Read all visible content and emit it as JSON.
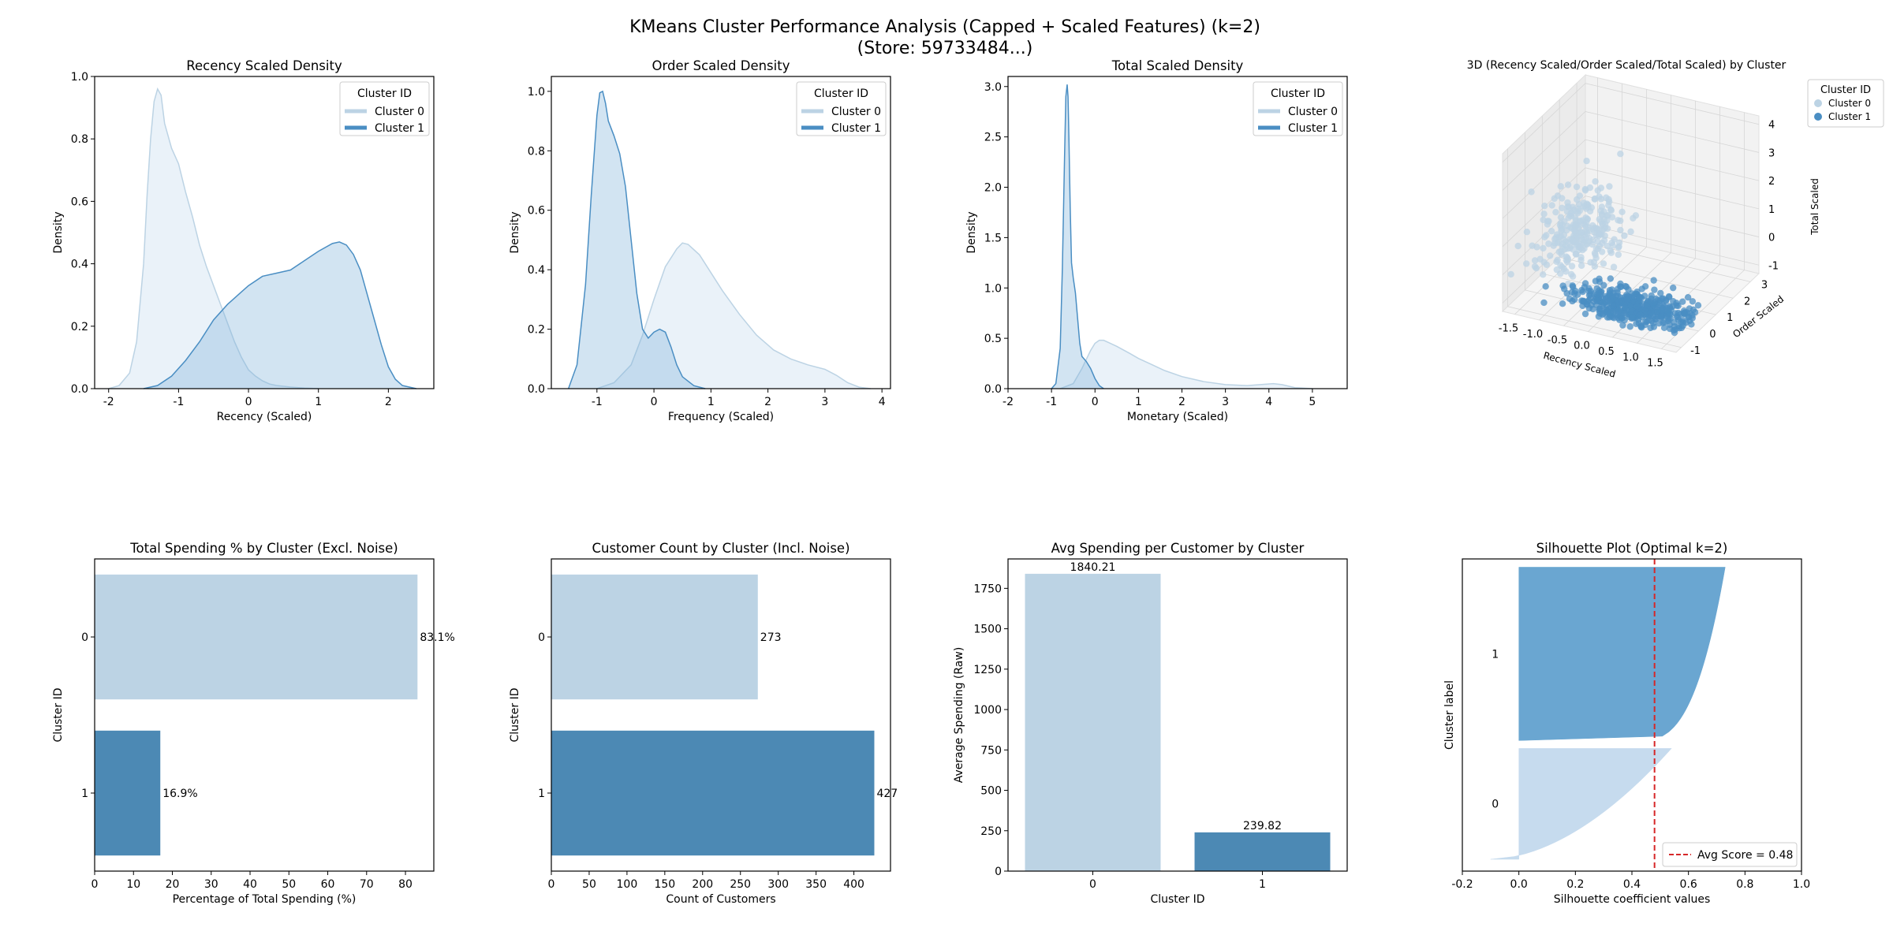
{
  "suptitle": [
    "KMeans Cluster Performance Analysis (Capped + Scaled Features) (k=2)",
    "(Store: 59733484...)"
  ],
  "colors": {
    "cluster0": "#bcd3e4",
    "cluster1": "#4c89b4",
    "kde0_line": "#bcd3e4",
    "kde1_line": "#4a8ec3",
    "sil0": "#c6dbee",
    "sil1": "#6aa6d1",
    "avg_line": "#d62728"
  },
  "chart_data": [
    {
      "type": "area",
      "id": "recency",
      "title": "Recency Scaled Density",
      "xlabel": "Recency (Scaled)",
      "ylabel": "Density",
      "xlim": [
        -2.2,
        2.65
      ],
      "ylim": [
        0,
        1.0
      ],
      "xticks": [
        -2,
        -1,
        0,
        1,
        2
      ],
      "yticks": [
        0.0,
        0.2,
        0.4,
        0.6,
        0.8,
        1.0
      ],
      "legend": {
        "title": "Cluster ID",
        "entries": [
          "Cluster 0",
          "Cluster 1"
        ],
        "position": "top-right"
      },
      "series": [
        {
          "name": "Cluster 0",
          "x": [
            -2.0,
            -1.85,
            -1.7,
            -1.6,
            -1.5,
            -1.45,
            -1.4,
            -1.35,
            -1.3,
            -1.25,
            -1.2,
            -1.1,
            -1.0,
            -0.9,
            -0.8,
            -0.7,
            -0.6,
            -0.5,
            -0.4,
            -0.3,
            -0.2,
            -0.1,
            0.0,
            0.1,
            0.2,
            0.3,
            0.4,
            0.6,
            0.8,
            1.0
          ],
          "y": [
            0.0,
            0.01,
            0.05,
            0.15,
            0.4,
            0.62,
            0.8,
            0.92,
            0.96,
            0.94,
            0.85,
            0.77,
            0.72,
            0.63,
            0.55,
            0.46,
            0.39,
            0.33,
            0.27,
            0.21,
            0.15,
            0.1,
            0.06,
            0.04,
            0.025,
            0.015,
            0.01,
            0.005,
            0.002,
            0.0
          ]
        },
        {
          "name": "Cluster 1",
          "x": [
            -1.5,
            -1.3,
            -1.1,
            -0.9,
            -0.7,
            -0.5,
            -0.3,
            -0.1,
            0.0,
            0.2,
            0.4,
            0.6,
            0.8,
            1.0,
            1.2,
            1.3,
            1.4,
            1.5,
            1.6,
            1.7,
            1.8,
            1.9,
            2.0,
            2.1,
            2.2,
            2.4
          ],
          "y": [
            0.0,
            0.01,
            0.04,
            0.09,
            0.15,
            0.22,
            0.27,
            0.31,
            0.33,
            0.36,
            0.37,
            0.38,
            0.41,
            0.44,
            0.465,
            0.47,
            0.46,
            0.43,
            0.38,
            0.3,
            0.22,
            0.14,
            0.07,
            0.03,
            0.01,
            0.0
          ]
        }
      ]
    },
    {
      "type": "area",
      "id": "order",
      "title": "Order Scaled Density",
      "xlabel": "Frequency (Scaled)",
      "ylabel": "Density",
      "xlim": [
        -1.8,
        4.15
      ],
      "ylim": [
        0,
        1.05
      ],
      "xticks": [
        -1,
        0,
        1,
        2,
        3,
        4
      ],
      "yticks": [
        0.0,
        0.2,
        0.4,
        0.6,
        0.8,
        1.0
      ],
      "legend": {
        "title": "Cluster ID",
        "entries": [
          "Cluster 0",
          "Cluster 1"
        ],
        "position": "top-right"
      },
      "series": [
        {
          "name": "Cluster 0",
          "x": [
            -1.0,
            -0.7,
            -0.4,
            -0.2,
            0.0,
            0.2,
            0.4,
            0.5,
            0.6,
            0.8,
            1.0,
            1.2,
            1.5,
            1.8,
            2.1,
            2.4,
            2.7,
            3.0,
            3.2,
            3.4,
            3.6,
            3.8
          ],
          "y": [
            0.0,
            0.02,
            0.08,
            0.18,
            0.3,
            0.41,
            0.47,
            0.49,
            0.485,
            0.45,
            0.39,
            0.33,
            0.25,
            0.18,
            0.13,
            0.1,
            0.08,
            0.065,
            0.045,
            0.02,
            0.005,
            0.0
          ]
        },
        {
          "name": "Cluster 1",
          "x": [
            -1.5,
            -1.35,
            -1.2,
            -1.1,
            -1.0,
            -0.95,
            -0.9,
            -0.85,
            -0.8,
            -0.7,
            -0.6,
            -0.5,
            -0.4,
            -0.3,
            -0.2,
            -0.1,
            0.0,
            0.1,
            0.2,
            0.3,
            0.4,
            0.5,
            0.7,
            0.9
          ],
          "y": [
            0.0,
            0.08,
            0.35,
            0.65,
            0.92,
            0.995,
            1.0,
            0.96,
            0.9,
            0.85,
            0.79,
            0.68,
            0.5,
            0.32,
            0.2,
            0.17,
            0.19,
            0.2,
            0.19,
            0.14,
            0.08,
            0.04,
            0.01,
            0.0
          ]
        }
      ]
    },
    {
      "type": "area",
      "id": "total",
      "title": "Total Scaled Density",
      "xlabel": "Monetary (Scaled)",
      "ylabel": "Density",
      "xlim": [
        -2.0,
        5.8
      ],
      "ylim": [
        0,
        3.1
      ],
      "xticks": [
        -2,
        -1,
        0,
        1,
        2,
        3,
        4,
        5
      ],
      "yticks": [
        0.0,
        0.5,
        1.0,
        1.5,
        2.0,
        2.5,
        3.0
      ],
      "legend": {
        "title": "Cluster ID",
        "entries": [
          "Cluster 0",
          "Cluster 1"
        ],
        "position": "top-right"
      },
      "series": [
        {
          "name": "Cluster 0",
          "x": [
            -0.8,
            -0.5,
            -0.3,
            -0.1,
            0.0,
            0.1,
            0.2,
            0.3,
            0.5,
            0.8,
            1.0,
            1.3,
            1.6,
            2.0,
            2.5,
            3.0,
            3.5,
            3.8,
            4.1,
            4.3,
            4.6,
            5.0
          ],
          "y": [
            0.0,
            0.05,
            0.2,
            0.38,
            0.45,
            0.48,
            0.48,
            0.46,
            0.42,
            0.35,
            0.3,
            0.24,
            0.18,
            0.12,
            0.07,
            0.04,
            0.03,
            0.04,
            0.05,
            0.04,
            0.01,
            0.0
          ]
        },
        {
          "name": "Cluster 1",
          "x": [
            -1.0,
            -0.9,
            -0.8,
            -0.75,
            -0.7,
            -0.67,
            -0.64,
            -0.62,
            -0.6,
            -0.57,
            -0.54,
            -0.5,
            -0.45,
            -0.4,
            -0.35,
            -0.3,
            -0.2,
            -0.1,
            0.0,
            0.1,
            0.2
          ],
          "y": [
            0.0,
            0.05,
            0.4,
            1.2,
            2.3,
            2.9,
            3.02,
            2.9,
            2.5,
            1.8,
            1.25,
            1.1,
            0.95,
            0.7,
            0.45,
            0.32,
            0.27,
            0.2,
            0.1,
            0.03,
            0.0
          ]
        }
      ]
    },
    {
      "type": "scatter",
      "id": "scatter3d",
      "title": "3D (Recency Scaled/Order Scaled/Total Scaled) by Cluster",
      "xlabel": "Recency Scaled",
      "ylabel": "Order Scaled",
      "zlabel": "Total Scaled",
      "xticks": [
        -1.5,
        -1.0,
        -0.5,
        0.0,
        0.5,
        1.0,
        1.5
      ],
      "yticks": [
        -1,
        0,
        1,
        2,
        3
      ],
      "zticks": [
        -1,
        0,
        1,
        2,
        3,
        4
      ],
      "legend": {
        "title": "Cluster ID",
        "entries": [
          "Cluster 0",
          "Cluster 1"
        ],
        "position": "right"
      },
      "clusters": [
        {
          "name": "Cluster 0",
          "recency_mean": -1.0,
          "recency_sd": 0.35,
          "order_mean": 1.0,
          "order_sd": 0.8,
          "total_mean": 0.6,
          "total_sd": 0.9,
          "count": 273
        },
        {
          "name": "Cluster 1",
          "recency_mean": 0.7,
          "recency_sd": 0.55,
          "order_mean": -0.6,
          "order_sd": 0.35,
          "total_mean": -0.55,
          "total_sd": 0.2,
          "count": 427
        }
      ]
    },
    {
      "type": "bar",
      "id": "spending_pct",
      "orientation": "horizontal",
      "title": "Total Spending % by Cluster (Excl. Noise)",
      "xlabel": "Percentage of Total Spending (%)",
      "ylabel": "Cluster ID",
      "categories": [
        "0",
        "1"
      ],
      "values": [
        83.1,
        16.9
      ],
      "labels": [
        "83.1%",
        "16.9%"
      ],
      "xlim": [
        0,
        87.3
      ],
      "xticks": [
        0,
        10,
        20,
        30,
        40,
        50,
        60,
        70,
        80
      ]
    },
    {
      "type": "bar",
      "id": "customer_count",
      "orientation": "horizontal",
      "title": "Customer Count by Cluster (Incl. Noise)",
      "xlabel": "Count of Customers",
      "ylabel": "Cluster ID",
      "categories": [
        "0",
        "1"
      ],
      "values": [
        273,
        427
      ],
      "labels": [
        "273",
        "427"
      ],
      "xlim": [
        0,
        448.4
      ],
      "xticks": [
        0,
        50,
        100,
        150,
        200,
        250,
        300,
        350,
        400
      ]
    },
    {
      "type": "bar",
      "id": "avg_spending",
      "orientation": "vertical",
      "title": "Avg Spending per Customer by Cluster",
      "xlabel": "Cluster ID",
      "ylabel": "Average Spending (Raw)",
      "categories": [
        "0",
        "1"
      ],
      "values": [
        1840.21,
        239.82
      ],
      "labels": [
        "1840.21",
        "239.82"
      ],
      "ylim": [
        0,
        1932.2
      ],
      "yticks": [
        0,
        250,
        500,
        750,
        1000,
        1250,
        1500,
        1750
      ]
    },
    {
      "type": "area",
      "id": "silhouette",
      "title": "Silhouette Plot (Optimal k=2)",
      "xlabel": "Silhouette coefficient values",
      "ylabel": "Cluster label",
      "xlim": [
        -0.2,
        1.0
      ],
      "xticks": [
        -0.2,
        0.0,
        0.2,
        0.4,
        0.6,
        0.8,
        1.0
      ],
      "avg_score": 0.48,
      "legend": {
        "entries": [
          "Avg Score = 0.48"
        ],
        "position": "lower-right"
      },
      "clusters": [
        {
          "label": "0",
          "count": 273,
          "max": 0.54,
          "min": -0.1
        },
        {
          "label": "1",
          "count": 427,
          "max": 0.73,
          "min": 0.0
        }
      ]
    }
  ]
}
